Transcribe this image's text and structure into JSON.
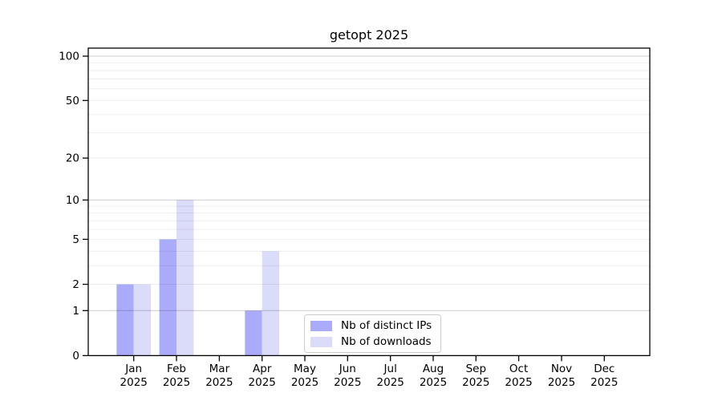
{
  "figure": {
    "background": "#ffffff"
  },
  "chart_data": {
    "type": "bar",
    "title": "getopt 2025",
    "categories": [
      "Jan",
      "Feb",
      "Mar",
      "Apr",
      "May",
      "Jun",
      "Jul",
      "Aug",
      "Sep",
      "Oct",
      "Nov",
      "Dec"
    ],
    "category_year": "2025",
    "series": [
      {
        "name": "Nb of distinct IPs",
        "color": "#ababfb",
        "values": [
          2,
          5,
          0,
          1,
          0,
          0,
          0,
          0,
          0,
          0,
          0,
          0
        ]
      },
      {
        "name": "Nb of downloads",
        "color": "#dbdbfa",
        "values": [
          2,
          10,
          0,
          4,
          0,
          0,
          0,
          0,
          0,
          0,
          0,
          0
        ]
      }
    ],
    "yscale": "log1p",
    "yticks": [
      0,
      1,
      2,
      5,
      10,
      20,
      50,
      100
    ],
    "ylim": [
      0,
      113
    ],
    "grid": true,
    "legend_position": "bottom-center",
    "colors": {
      "grid_major": "rgba(0,0,0,0.20)",
      "grid_minor": "rgba(0,0,0,0.07)",
      "axis": "#000000",
      "tick_text": "#000000",
      "legend_border": "#cccccc"
    }
  }
}
